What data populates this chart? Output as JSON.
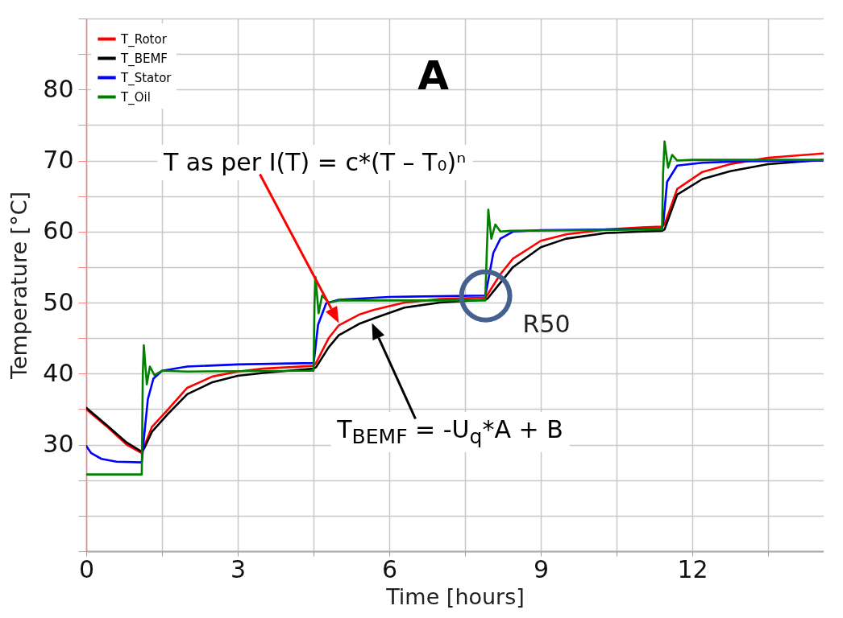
{
  "chart_data": {
    "type": "line",
    "title": "A",
    "xlabel": "Time [hours]",
    "ylabel": "Temperature [°C]",
    "xlim": [
      0,
      14.6
    ],
    "ylim": [
      15,
      90
    ],
    "xticks": [
      0,
      {
        "value": 1.5,
        "label": null
      },
      3,
      {
        "value": 4.5,
        "label": null
      },
      6,
      {
        "value": 7.5,
        "label": null
      },
      9,
      {
        "value": 10.5,
        "label": null
      },
      12,
      {
        "value": 13.5,
        "label": null
      }
    ],
    "yticks": [
      {
        "value": 15,
        "label": null
      },
      {
        "value": 20,
        "label": null
      },
      {
        "value": 25,
        "label": null
      },
      30,
      {
        "value": 35,
        "label": null
      },
      40,
      {
        "value": 45,
        "label": null
      },
      50,
      {
        "value": 55,
        "label": null
      },
      60,
      {
        "value": 65,
        "label": null
      },
      70,
      {
        "value": 75,
        "label": null
      },
      80,
      {
        "value": 85,
        "label": null
      },
      {
        "value": 90,
        "label": null
      }
    ],
    "grid": true,
    "legend": "top left",
    "annotations": [
      "T as per I(T) = c*(T – T₀)ⁿ",
      "T$_{BEMF}$ = -U$_{q}$*A + B",
      {
        "text": "R50",
        "x": 7.9,
        "y": 51.0
      }
    ],
    "series": [
      {
        "name": "T_Rotor",
        "color": "#ff0000",
        "x": [
          0,
          0.4,
          0.8,
          1.1,
          1.15,
          1.3,
          1.6,
          2.0,
          2.5,
          3.0,
          3.5,
          4.0,
          4.5,
          4.55,
          4.8,
          5.0,
          5.4,
          5.7,
          6.3,
          7.0,
          7.9,
          7.95,
          8.2,
          8.45,
          9.0,
          9.5,
          10.3,
          11.0,
          11.4,
          11.45,
          11.7,
          12.2,
          12.75,
          13.5,
          14.6
        ],
        "values": [
          35.0,
          32.6,
          30.0,
          28.8,
          29.8,
          32.5,
          34.8,
          38.0,
          39.6,
          40.3,
          40.7,
          40.9,
          41.1,
          41.5,
          45.0,
          46.8,
          48.3,
          49.0,
          50.0,
          50.5,
          50.7,
          51.2,
          54.0,
          56.2,
          58.7,
          59.6,
          60.3,
          60.6,
          60.7,
          61.0,
          66.0,
          68.4,
          69.5,
          70.4,
          71.0
        ]
      },
      {
        "name": "T_BEMF",
        "color": "#000000",
        "x": [
          0,
          0.4,
          0.8,
          1.1,
          1.15,
          1.3,
          1.6,
          2.0,
          2.5,
          3.0,
          3.5,
          4.0,
          4.5,
          4.55,
          4.8,
          5.0,
          5.4,
          5.7,
          6.3,
          7.0,
          7.9,
          7.95,
          8.2,
          8.45,
          9.0,
          9.5,
          10.3,
          11.0,
          11.4,
          11.45,
          11.7,
          12.2,
          12.75,
          13.5,
          14.6
        ],
        "values": [
          35.2,
          32.8,
          30.3,
          29.0,
          29.5,
          31.8,
          34.2,
          37.1,
          38.8,
          39.7,
          40.1,
          40.4,
          40.7,
          40.9,
          43.7,
          45.4,
          47.0,
          47.8,
          49.3,
          50.0,
          50.4,
          50.6,
          52.8,
          55.0,
          57.8,
          59.0,
          59.8,
          60.0,
          60.1,
          60.3,
          65.2,
          67.4,
          68.5,
          69.5,
          70.1
        ]
      },
      {
        "name": "T_Stator",
        "color": "#0000ff",
        "x": [
          0,
          0.1,
          0.3,
          0.6,
          1.1,
          1.13,
          1.22,
          1.33,
          1.5,
          2.0,
          3.0,
          4.5,
          4.52,
          4.59,
          4.75,
          5.0,
          6.0,
          7.9,
          7.93,
          8.06,
          8.2,
          8.45,
          9.0,
          11.4,
          11.43,
          11.5,
          11.7,
          12.2,
          13.0,
          14.6
        ],
        "values": [
          29.8,
          28.8,
          28.0,
          27.6,
          27.5,
          30.0,
          36.4,
          39.3,
          40.4,
          41.0,
          41.3,
          41.5,
          42.5,
          46.9,
          49.9,
          50.4,
          50.8,
          51.0,
          52.0,
          57.0,
          59.0,
          60.0,
          60.2,
          60.4,
          61.5,
          67.0,
          69.3,
          69.7,
          69.9,
          70.0
        ]
      },
      {
        "name": "T_Oil",
        "color": "#008000",
        "x": [
          0,
          0.5,
          1.1,
          1.12,
          1.14,
          1.2,
          1.26,
          1.35,
          1.5,
          2.0,
          4.5,
          4.52,
          4.54,
          4.6,
          4.67,
          4.8,
          5.0,
          7.9,
          7.93,
          7.96,
          8.02,
          8.1,
          8.2,
          8.4,
          11.4,
          11.42,
          11.45,
          11.52,
          11.6,
          11.7,
          12.0,
          14.6
        ],
        "values": [
          25.8,
          25.8,
          25.8,
          40.0,
          44.0,
          38.5,
          41.0,
          39.8,
          40.4,
          40.3,
          40.4,
          50.0,
          53.6,
          48.5,
          51.0,
          50.0,
          50.3,
          50.3,
          57.0,
          63.1,
          59.0,
          61.0,
          60.0,
          60.1,
          60.3,
          68.0,
          72.7,
          69.0,
          70.8,
          70.0,
          70.1,
          70.1
        ]
      }
    ]
  }
}
